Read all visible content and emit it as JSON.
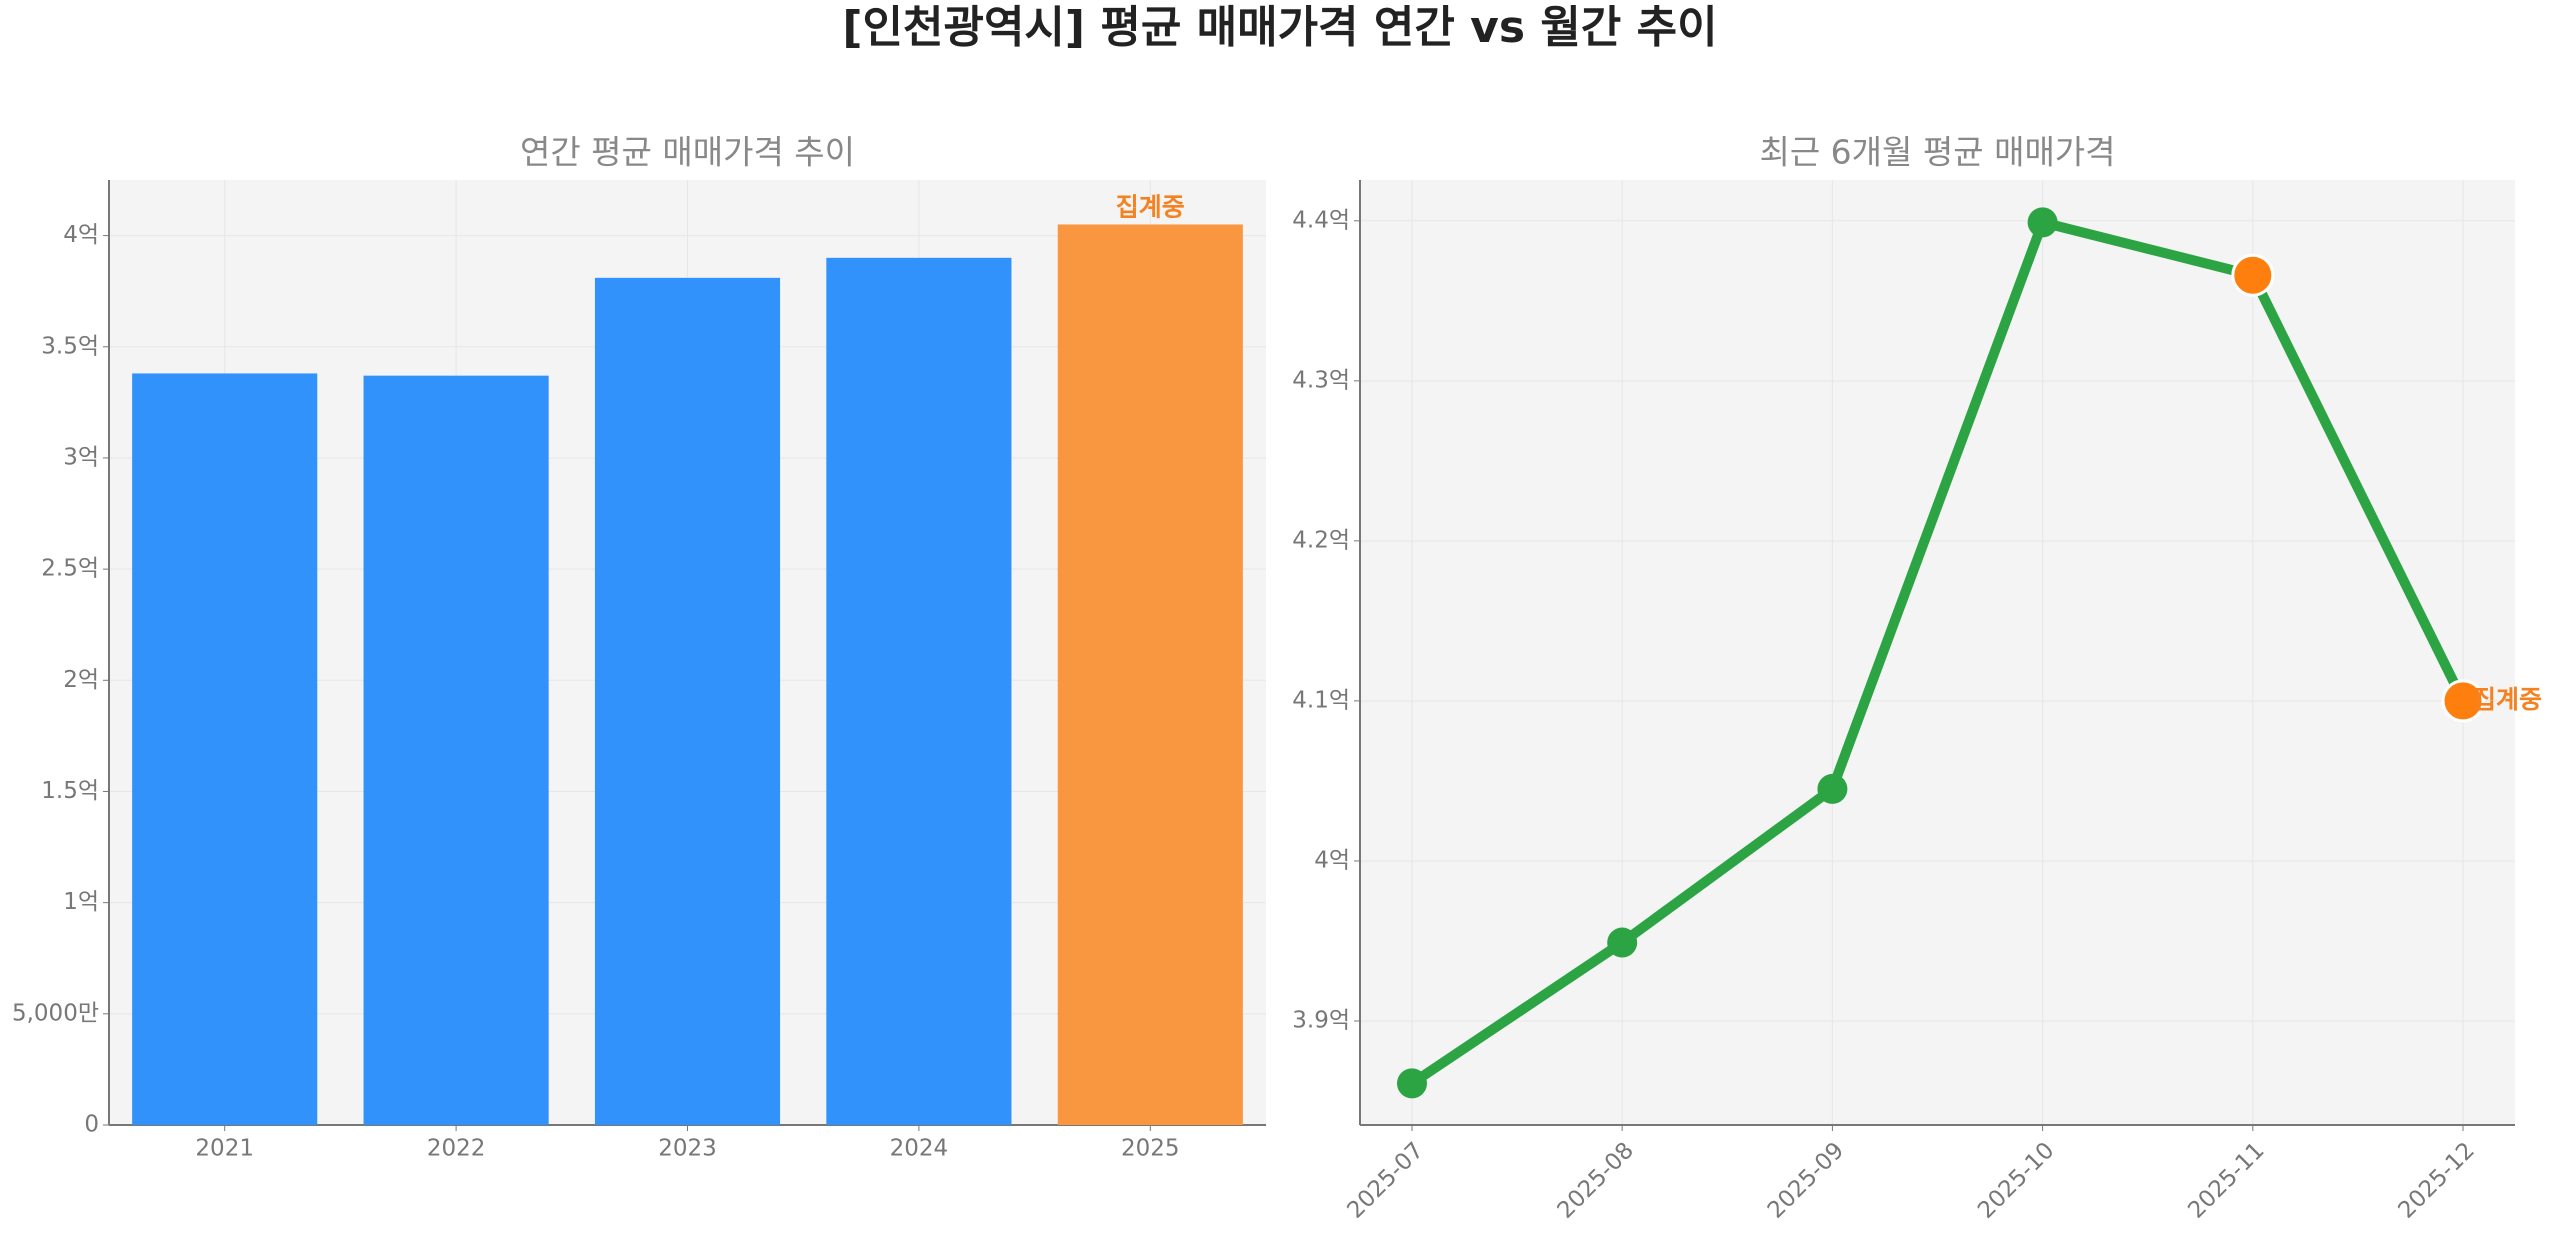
{
  "title": "[인천광역시] 평균 매매가격 연간 vs 월간 추이",
  "chart_data": [
    {
      "type": "bar",
      "title": "연간 평균 매매가격 추이",
      "categories": [
        "2021",
        "2022",
        "2023",
        "2024",
        "2025"
      ],
      "values": [
        3.38,
        3.37,
        3.81,
        3.9,
        4.05
      ],
      "colors": [
        "#3192fb",
        "#3192fb",
        "#3192fb",
        "#3192fb",
        "#f99740"
      ],
      "annotation": "집계중",
      "annotation_color": "#f58220",
      "ylim": [
        0,
        4.25
      ],
      "yticks": [
        0,
        {
          "value": 0.5,
          "label": "5,000만"
        },
        {
          "value": 1,
          "label": "1억"
        },
        {
          "value": 1.5,
          "label": "1.5억"
        },
        {
          "value": 2,
          "label": "2억"
        },
        {
          "value": 2.5,
          "label": "2.5억"
        },
        {
          "value": 3,
          "label": "3억"
        },
        {
          "value": 3.5,
          "label": "3.5억"
        },
        {
          "value": 4,
          "label": "4억"
        }
      ],
      "grid": true
    },
    {
      "type": "line",
      "title": "최근 6개월 평균 매매가격",
      "categories": [
        "2025-07",
        "2025-08",
        "2025-09",
        "2025-10",
        "2025-11",
        "2025-12"
      ],
      "values": [
        3.861,
        3.949,
        4.045,
        4.399,
        4.366,
        4.1
      ],
      "color": "#2ca444",
      "marker_colors": [
        "#2ca444",
        "#2ca444",
        "#2ca444",
        "#2ca444",
        "#ff7f0e",
        "#ff7f0e"
      ],
      "annotation": "집계중",
      "annotation_color": "#f58220",
      "ylim": [
        3.835,
        4.4255
      ],
      "yticks": [
        {
          "value": 3.9,
          "label": "3.9억"
        },
        {
          "value": 4,
          "label": "4억"
        },
        {
          "value": 4.1,
          "label": "4.1억"
        },
        {
          "value": 4.2,
          "label": "4.2억"
        },
        {
          "value": 4.3,
          "label": "4.3억"
        },
        {
          "value": 4.4,
          "label": "4.4억"
        }
      ],
      "grid": true
    }
  ]
}
